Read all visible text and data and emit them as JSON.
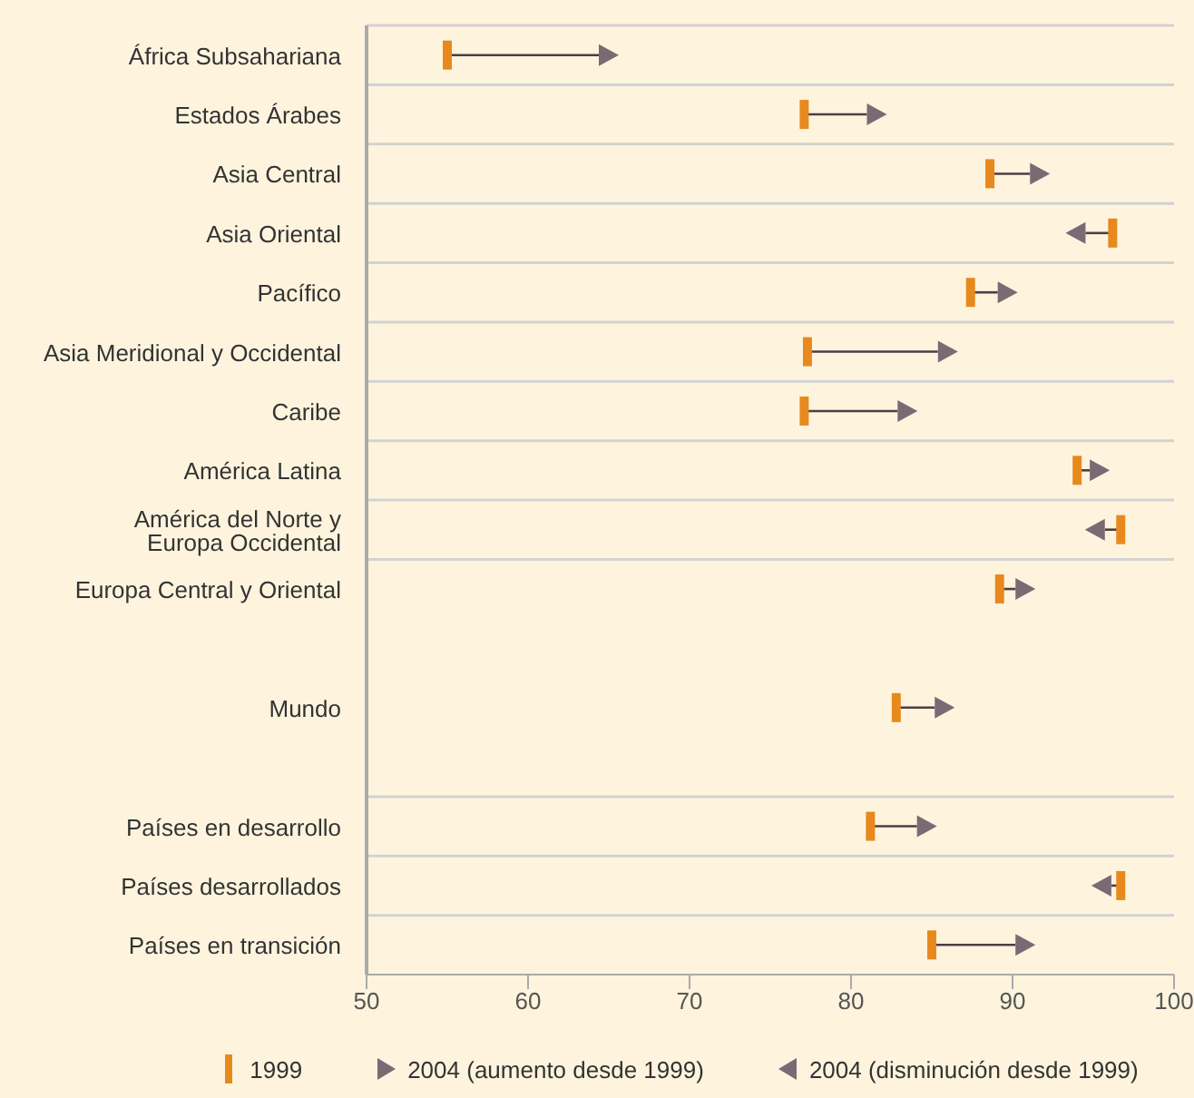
{
  "chart_data": {
    "type": "scatter",
    "orientation": "horizontal",
    "categories": [
      "África Subsahariana",
      "Estados Árabes",
      "Asia Central",
      "Asia Oriental",
      "Pacífico",
      "Asia Meridional y Occidental",
      "Caribe",
      "América Latina",
      "América del Norte y\nEuropa Occidental",
      "Europa Central y Oriental",
      null,
      "Mundo",
      null,
      "Países en desarrollo",
      "Países desarrollados",
      "Países en transición"
    ],
    "series": [
      {
        "name": "1999",
        "color": "#e8891e",
        "values": [
          55.0,
          77.1,
          88.6,
          96.2,
          87.4,
          77.3,
          77.1,
          94.0,
          96.7,
          89.2,
          null,
          82.8,
          null,
          81.2,
          96.7,
          85.0
        ]
      },
      {
        "name": "2004 (aumento desde 1999)",
        "color": "#7a6a73",
        "marker": "triangle",
        "values": [
          65.0,
          81.6,
          91.7,
          null,
          89.7,
          86.0,
          83.5,
          95.4,
          null,
          90.8,
          null,
          85.8,
          null,
          84.7,
          null,
          90.8
        ]
      },
      {
        "name": "2004 (disminución desde 1999)",
        "color": "#7a6a73",
        "marker": "triangle",
        "values": [
          null,
          null,
          null,
          93.9,
          null,
          null,
          null,
          null,
          95.1,
          null,
          null,
          null,
          null,
          null,
          95.5,
          null
        ]
      }
    ],
    "xlim": [
      50,
      100
    ],
    "xticks": [
      50,
      60,
      70,
      80,
      90,
      100
    ],
    "grid": "y",
    "legend": "bottom"
  }
}
